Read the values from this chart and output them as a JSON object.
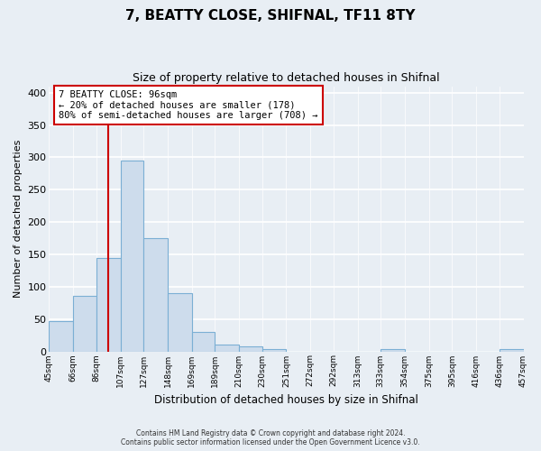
{
  "title": "7, BEATTY CLOSE, SHIFNAL, TF11 8TY",
  "subtitle": "Size of property relative to detached houses in Shifnal",
  "xlabel": "Distribution of detached houses by size in Shifnal",
  "ylabel": "Number of detached properties",
  "bar_values": [
    47,
    86,
    145,
    295,
    175,
    90,
    30,
    11,
    7,
    4,
    0,
    0,
    0,
    0,
    4,
    0,
    0,
    0,
    0,
    4
  ],
  "tick_labels": [
    "45sqm",
    "66sqm",
    "86sqm",
    "107sqm",
    "127sqm",
    "148sqm",
    "169sqm",
    "189sqm",
    "210sqm",
    "230sqm",
    "251sqm",
    "272sqm",
    "292sqm",
    "313sqm",
    "333sqm",
    "354sqm",
    "375sqm",
    "395sqm",
    "416sqm",
    "436sqm",
    "457sqm"
  ],
  "tick_vals": [
    45,
    66,
    86,
    107,
    127,
    148,
    169,
    189,
    210,
    230,
    251,
    272,
    292,
    313,
    333,
    354,
    375,
    395,
    416,
    436,
    457
  ],
  "bar_color": "#cddcec",
  "bar_edge_color": "#7bafd4",
  "vline_x": 96,
  "vline_color": "#cc0000",
  "ylim": [
    0,
    410
  ],
  "yticks": [
    0,
    50,
    100,
    150,
    200,
    250,
    300,
    350,
    400
  ],
  "annotation_title": "7 BEATTY CLOSE: 96sqm",
  "annotation_line1": "← 20% of detached houses are smaller (178)",
  "annotation_line2": "80% of semi-detached houses are larger (708) →",
  "annotation_box_color": "#cc0000",
  "footer_line1": "Contains HM Land Registry data © Crown copyright and database right 2024.",
  "footer_line2": "Contains public sector information licensed under the Open Government Licence v3.0.",
  "bg_color": "#e8eef4",
  "grid_color": "#ffffff"
}
